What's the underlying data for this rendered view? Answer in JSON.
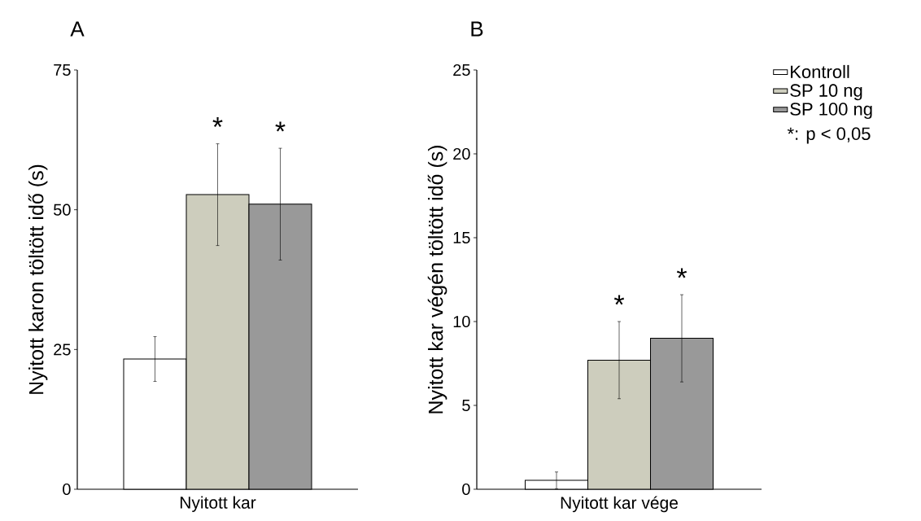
{
  "chart_data": [
    {
      "type": "bar",
      "title": "A",
      "xlabel": "Nyitott kar",
      "ylabel": "Nyitott karon töltött idő (s)",
      "categories": [
        null,
        null,
        null
      ],
      "stacked": true,
      "ylim": [
        0,
        75
      ],
      "yticks": [
        0,
        25,
        50,
        75
      ],
      "grid": false,
      "legend": false,
      "series": [
        {
          "color": "#ffffff",
          "values": [
            23.3,
            null,
            null
          ],
          "errors": [
            4.0,
            null,
            null
          ]
        },
        {
          "color": "#cdcdbd",
          "values": [
            null,
            52.7,
            null
          ],
          "errors": [
            null,
            9.1,
            null
          ],
          "value_labels": [
            null,
            "*",
            null
          ]
        },
        {
          "color": "#999999",
          "values": [
            null,
            null,
            51.0
          ],
          "errors": [
            null,
            null,
            10.0
          ],
          "value_labels": [
            null,
            null,
            "*"
          ]
        }
      ]
    },
    {
      "type": "bar",
      "title": "B",
      "xlabel": "Nyitott kar vége",
      "ylabel": "Nyitott kar végén töltött idő (s)",
      "categories": [
        null,
        null,
        null
      ],
      "stacked": true,
      "ylim": [
        0,
        25
      ],
      "yticks": [
        0,
        5,
        10,
        15,
        20,
        25
      ],
      "grid": false,
      "legend": "top right",
      "annotations": [
        "*: p < 0,05"
      ],
      "series": [
        {
          "name": "Kontroll",
          "color": "#ffffff",
          "values": [
            0.53,
            null,
            null
          ],
          "errors": [
            0.5,
            null,
            null
          ]
        },
        {
          "name": "SP 10 ng",
          "color": "#cdcdbd",
          "values": [
            null,
            7.7,
            null
          ],
          "errors": [
            null,
            2.3,
            null
          ],
          "value_labels": [
            null,
            "*",
            null
          ]
        },
        {
          "name": "SP 100 ng",
          "color": "#999999",
          "values": [
            null,
            null,
            9.0
          ],
          "errors": [
            null,
            null,
            2.6
          ],
          "value_labels": [
            null,
            null,
            "*"
          ]
        }
      ]
    }
  ]
}
